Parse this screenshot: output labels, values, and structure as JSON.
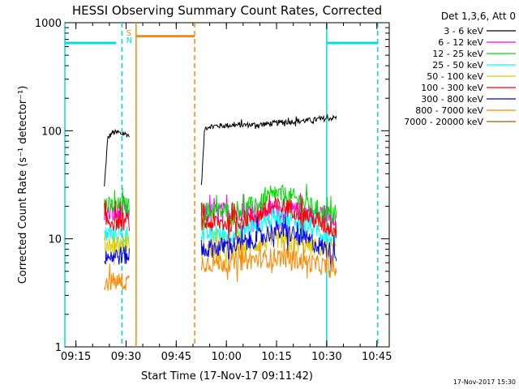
{
  "chart_data": {
    "type": "line",
    "title": "HESSI Observing Summary Count Rates, Corrected",
    "xlabel": "Start Time (17-Nov-17 09:11:42)",
    "ylabel": "Corrected Count Rate (s⁻¹ detector⁻¹)",
    "yscale": "log",
    "ylim": [
      1,
      1000
    ],
    "xlim": [
      "09:11:42",
      "10:48:42"
    ],
    "x_ticks": [
      "09:15",
      "09:30",
      "09:45",
      "10:00",
      "10:15",
      "10:30",
      "10:45"
    ],
    "y_ticks": [
      "1",
      "10",
      "100",
      "1000"
    ],
    "grid": false,
    "legend_title": "Det 1,3,6, Att 0",
    "legend_position": "right",
    "date_stamp": "17-Nov-2017 15:30",
    "series": [
      {
        "name": "3 - 6 keV",
        "color": "#000000",
        "segments": [
          {
            "x": [
              "09:23:30",
              "09:24:30",
              "09:26:00",
              "09:28:00",
              "09:30:00",
              "09:31:00"
            ],
            "y": [
              30,
              85,
              97,
              95,
              93,
              90
            ]
          },
          {
            "x": [
              "09:52:30",
              "09:53:30",
              "09:55:00",
              "10:00:00",
              "10:05:00",
              "10:10:00",
              "10:15:00",
              "10:20:00",
              "10:25:00",
              "10:30:00",
              "10:33:00"
            ],
            "y": [
              30,
              105,
              110,
              112,
              113,
              114,
              118,
              122,
              125,
              130,
              132
            ]
          }
        ]
      },
      {
        "name": "6 - 12 keV",
        "color": "#ff00ff",
        "segments": [
          {
            "x": [
              "09:23:30",
              "09:31:00"
            ],
            "y": [
              17,
              17
            ]
          },
          {
            "x": [
              "09:52:30",
              "10:00:00",
              "10:10:00",
              "10:15:00",
              "10:20:00",
              "10:30:00",
              "10:33:00"
            ],
            "y": [
              17,
              18,
              18,
              19,
              18,
              17,
              16
            ]
          }
        ]
      },
      {
        "name": "12 - 25 keV",
        "color": "#00dd00",
        "segments": [
          {
            "x": [
              "09:23:30",
              "09:31:00"
            ],
            "y": [
              20,
              20
            ]
          },
          {
            "x": [
              "09:52:30",
              "10:00:00",
              "10:05:00",
              "10:10:00",
              "10:15:00",
              "10:20:00",
              "10:25:00",
              "10:30:00",
              "10:33:00"
            ],
            "y": [
              18,
              18,
              19,
              21,
              26,
              24,
              20,
              17,
              16
            ]
          }
        ]
      },
      {
        "name": "25 - 50 keV",
        "color": "#00ffff",
        "segments": [
          {
            "x": [
              "09:23:30",
              "09:31:00"
            ],
            "y": [
              11,
              11
            ]
          },
          {
            "x": [
              "09:52:30",
              "10:00:00",
              "10:05:00",
              "10:10:00",
              "10:15:00",
              "10:20:00",
              "10:25:00",
              "10:30:00",
              "10:33:00"
            ],
            "y": [
              11,
              11,
              12,
              14,
              16,
              15,
              13,
              11,
              10
            ]
          }
        ]
      },
      {
        "name": "50 - 100 keV",
        "color": "#ddcc00",
        "segments": [
          {
            "x": [
              "09:23:30",
              "09:31:00"
            ],
            "y": [
              9,
              9
            ]
          },
          {
            "x": [
              "09:52:30",
              "10:00:00",
              "10:10:00",
              "10:15:00",
              "10:20:00",
              "10:30:00",
              "10:33:00"
            ],
            "y": [
              8,
              8,
              9,
              10,
              9,
              8,
              8
            ]
          }
        ]
      },
      {
        "name": "100 - 300 keV",
        "color": "#ff0000",
        "segments": [
          {
            "x": [
              "09:23:30",
              "09:31:00"
            ],
            "y": [
              14.5,
              14.5
            ]
          },
          {
            "x": [
              "09:52:30",
              "10:00:00",
              "10:05:00",
              "10:10:00",
              "10:15:00",
              "10:20:00",
              "10:25:00",
              "10:30:00",
              "10:33:00"
            ],
            "y": [
              14,
              14,
              15,
              17,
              20,
              19,
              16,
              13,
              12
            ]
          }
        ]
      },
      {
        "name": "300 - 800 keV",
        "color": "#0000ff",
        "segments": [
          {
            "x": [
              "09:23:30",
              "09:31:00"
            ],
            "y": [
              7,
              7
            ]
          },
          {
            "x": [
              "09:52:30",
              "10:00:00",
              "10:05:00",
              "10:10:00",
              "10:15:00",
              "10:20:00",
              "10:25:00",
              "10:30:00",
              "10:33:00"
            ],
            "y": [
              8,
              8.5,
              9,
              10.5,
              12,
              11,
              9.5,
              8,
              7
            ]
          }
        ]
      },
      {
        "name": "800 - 7000 keV",
        "color": "#ff8800",
        "segments": [
          {
            "x": [
              "09:23:30",
              "09:31:00"
            ],
            "y": [
              4,
              4
            ]
          },
          {
            "x": [
              "09:52:30",
              "10:00:00",
              "10:10:00",
              "10:15:00",
              "10:20:00",
              "10:30:00",
              "10:33:00"
            ],
            "y": [
              6,
              6,
              6.5,
              6.8,
              6.5,
              5.5,
              5
            ]
          }
        ]
      },
      {
        "name": "7000 - 20000 keV",
        "color": "#996600",
        "segments": []
      }
    ],
    "markers": [
      {
        "x": "09:11:42",
        "color": "#00dddd",
        "style": "solid"
      },
      {
        "x": "09:28:45",
        "color": "#00dddd",
        "style": "dashed"
      },
      {
        "x": "09:33:00",
        "color": "#ff8800",
        "style": "solid"
      },
      {
        "x": "09:50:30",
        "color": "#ff8800",
        "style": "dashed"
      },
      {
        "x": "10:30:00",
        "color": "#00dddd",
        "style": "solid"
      },
      {
        "x": "10:45:15",
        "color": "#00dddd",
        "style": "dashed"
      }
    ],
    "bars": [
      {
        "x0": "09:11:42",
        "x1": "09:27:00",
        "y": 650,
        "color": "#00dddd"
      },
      {
        "x0": "09:33:00",
        "x1": "09:50:30",
        "y": 750,
        "color": "#ff8800"
      },
      {
        "x0": "10:30:00",
        "x1": "10:45:15",
        "y": 650,
        "color": "#00dddd"
      }
    ],
    "flags": [
      {
        "label": "S",
        "x": "09:31:00",
        "color": "#ff8800"
      },
      {
        "label": "N",
        "x": "09:31:00",
        "color": "#00dddd"
      }
    ]
  }
}
